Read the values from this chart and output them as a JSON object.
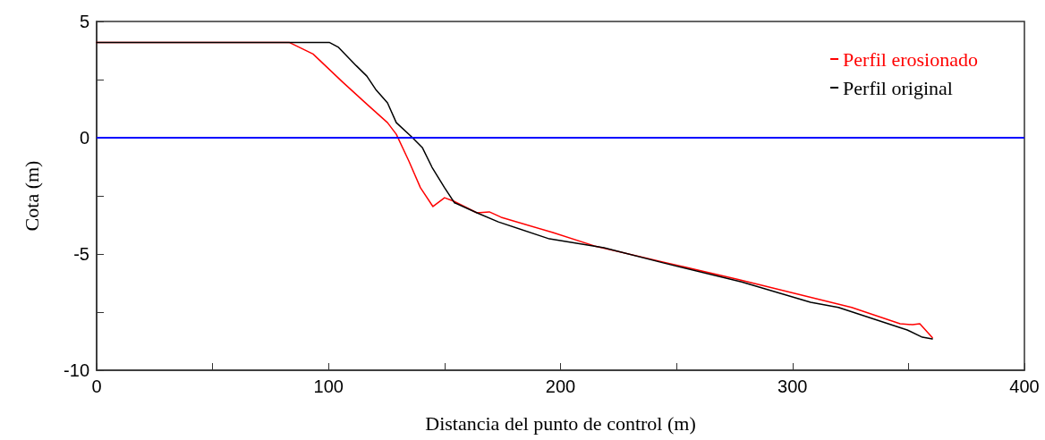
{
  "chart_data": {
    "type": "line",
    "xlabel": "Distancia del punto de control (m)",
    "ylabel": "Cota (m)",
    "xlim": [
      0,
      400
    ],
    "xticks": [
      0,
      {
        "value": 50,
        "label": null
      },
      100,
      {
        "value": 150,
        "label": null
      },
      200,
      {
        "value": 250,
        "label": null
      },
      300,
      {
        "value": 350,
        "label": null
      },
      400
    ],
    "ylim": [
      -10,
      5
    ],
    "yticks": [
      -10,
      {
        "value": -7.5,
        "label": null
      },
      -5,
      {
        "value": -2.5,
        "label": null
      },
      0,
      {
        "value": 2.5,
        "label": null
      },
      5
    ],
    "grid": false,
    "legend": "top right",
    "marker": "none",
    "line_style": "solid",
    "ref_lines": [
      {
        "axis": "y",
        "value": 0,
        "color": "#0000ff"
      }
    ],
    "series": [
      {
        "name": "Perfil erosionado",
        "color": "#ff0000",
        "x": [
          0,
          83,
          93.3,
          106,
          117,
          125.4,
          129.2,
          134.6,
          139.6,
          145,
          150,
          154,
          164,
          169.3,
          174.4,
          196.7,
          214.5,
          245.7,
          276.6,
          325.5,
          346.4,
          351.8,
          354.9,
          360.3
        ],
        "values": [
          4.1,
          4.1,
          3.6,
          2.4,
          1.4,
          0.65,
          0.15,
          -1.0,
          -2.15,
          -2.96,
          -2.58,
          -2.73,
          -3.23,
          -3.19,
          -3.42,
          -4.08,
          -4.65,
          -5.38,
          -6.1,
          -7.3,
          -8.0,
          -8.04,
          -8.0,
          -8.6
        ]
      },
      {
        "name": "Perfil original",
        "color": "#000000",
        "x": [
          0,
          100.3,
          104.1,
          108,
          111.9,
          116.5,
          120.3,
          125.4,
          129.2,
          135.8,
          140.4,
          144.6,
          150,
          154.3,
          164,
          173.2,
          195.2,
          218.7,
          244.2,
          278.1,
          307.8,
          319.8,
          349.5,
          356,
          360.3
        ],
        "values": [
          4.1,
          4.1,
          3.9,
          3.5,
          3.1,
          2.65,
          2.08,
          1.5,
          0.65,
          0.04,
          -0.42,
          -1.27,
          -2.15,
          -2.8,
          -3.23,
          -3.62,
          -4.35,
          -4.73,
          -5.38,
          -6.2,
          -7.08,
          -7.3,
          -8.27,
          -8.58,
          -8.65
        ]
      }
    ]
  }
}
